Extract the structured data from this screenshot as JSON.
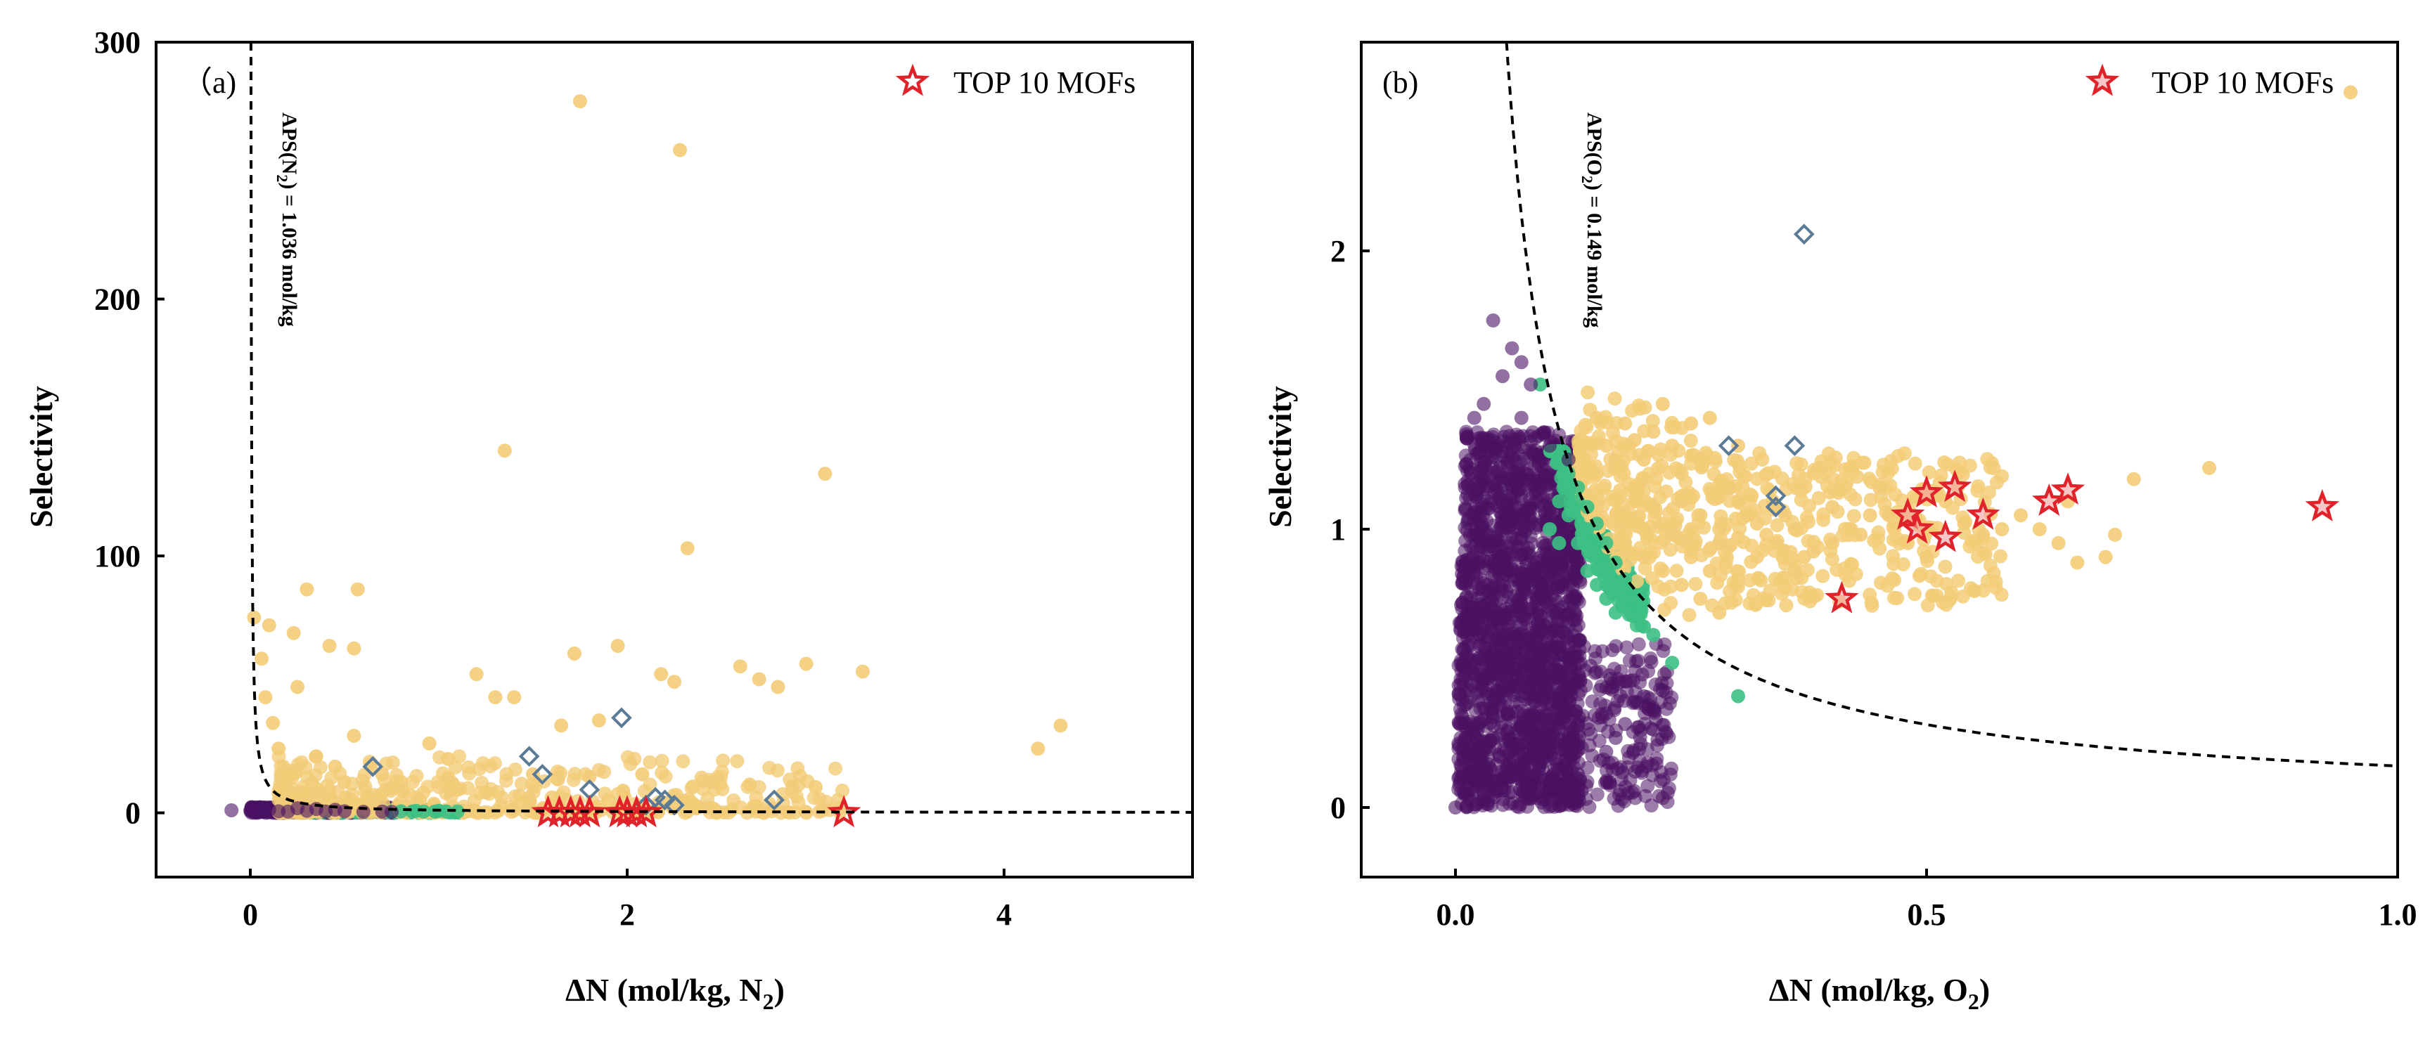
{
  "chart_data": [
    {
      "panel_label": "（a)",
      "type": "scatter",
      "xlabel": "ΔN (mol/kg,  N",
      "xlabel_sub": "2",
      "xlabel_end": ")",
      "ylabel": "Selectivity",
      "xlim": [
        -0.5,
        5
      ],
      "ylim": [
        -25,
        300
      ],
      "xticks": [
        0,
        2,
        4
      ],
      "yticks": [
        0,
        100,
        200,
        300
      ],
      "legend": {
        "label": "TOP 10 MOFs",
        "placement": "top-right"
      },
      "annotation": {
        "text_parts": [
          "APS(N",
          "2",
          ") = 1.036 mol/kg"
        ],
        "rotation": "vertical"
      },
      "apsf_constant": 1.036,
      "colors": {
        "yellow": "#f3cc78",
        "green": "#3cc084",
        "purple": "#4a1063",
        "blue": "#5a7a96",
        "red": "#e0232a"
      },
      "series": [
        {
          "name": "yellow",
          "marker": "circle",
          "points": [
            [
              1.75,
              277
            ],
            [
              2.28,
              258
            ],
            [
              1.35,
              141
            ],
            [
              3.05,
              132
            ],
            [
              2.32,
              103
            ],
            [
              0.3,
              87
            ],
            [
              0.57,
              87
            ],
            [
              0.02,
              76
            ],
            [
              0.1,
              73
            ],
            [
              0.23,
              70
            ],
            [
              0.42,
              65
            ],
            [
              0.55,
              64
            ],
            [
              0.25,
              49
            ],
            [
              1.2,
              54
            ],
            [
              1.95,
              65
            ],
            [
              2.18,
              54
            ],
            [
              2.25,
              51
            ],
            [
              2.6,
              57
            ],
            [
              2.7,
              52
            ],
            [
              2.8,
              49
            ],
            [
              2.95,
              58
            ],
            [
              3.25,
              55
            ],
            [
              4.3,
              34
            ],
            [
              4.18,
              25
            ],
            [
              1.3,
              45
            ],
            [
              1.4,
              45
            ],
            [
              1.65,
              34
            ],
            [
              1.85,
              36
            ],
            [
              1.72,
              62
            ],
            [
              0.55,
              30
            ],
            [
              0.95,
              27
            ],
            [
              1.05,
              21
            ],
            [
              1.5,
              15
            ],
            [
              1.8,
              14
            ],
            [
              2.08,
              15
            ],
            [
              2.45,
              12
            ],
            [
              2.65,
              11
            ],
            [
              3.0,
              10
            ],
            [
              0.15,
              25
            ],
            [
              0.12,
              35
            ],
            [
              0.08,
              45
            ],
            [
              0.06,
              60
            ],
            [
              0.35,
              22
            ],
            [
              0.45,
              18
            ],
            [
              0.7,
              15
            ],
            [
              0.8,
              12
            ],
            [
              1.1,
              9
            ],
            [
              1.25,
              8
            ],
            [
              1.6,
              6
            ],
            [
              1.9,
              5
            ],
            [
              2.2,
              4
            ],
            [
              2.35,
              3
            ],
            [
              0.2,
              15
            ],
            [
              0.28,
              8
            ],
            [
              0.5,
              12
            ],
            [
              0.62,
              6
            ],
            [
              0.9,
              5
            ],
            [
              1.45,
              4
            ]
          ]
        },
        {
          "name": "green",
          "marker": "circle",
          "points": [
            [
              0.8,
              0.6
            ],
            [
              0.86,
              0.5
            ],
            [
              0.92,
              0.5
            ],
            [
              0.98,
              0.5
            ],
            [
              1.04,
              0.5
            ],
            [
              1.1,
              0.5
            ],
            [
              0.88,
              0.8
            ],
            [
              1.0,
              0.8
            ]
          ]
        },
        {
          "name": "purple",
          "marker": "circle",
          "points": [
            [
              -0.1,
              1
            ],
            [
              0.0,
              0.8
            ],
            [
              0.05,
              1
            ],
            [
              0.1,
              1.2
            ],
            [
              0.15,
              0.6
            ],
            [
              0.2,
              0.5
            ],
            [
              0.3,
              0.8
            ],
            [
              0.4,
              0.5
            ],
            [
              0.5,
              0.6
            ],
            [
              0.6,
              0.4
            ],
            [
              0.7,
              0.5
            ],
            [
              0.75,
              0.4
            ],
            [
              0.35,
              1.5
            ],
            [
              0.25,
              1.8
            ],
            [
              0.45,
              1.2
            ]
          ]
        },
        {
          "name": "blue",
          "marker": "diamond",
          "points": [
            [
              0.65,
              18
            ],
            [
              1.48,
              22
            ],
            [
              1.55,
              15
            ],
            [
              1.97,
              37
            ],
            [
              1.8,
              9
            ],
            [
              2.15,
              6
            ],
            [
              2.2,
              5
            ],
            [
              2.25,
              3
            ],
            [
              2.78,
              5
            ],
            [
              2.1,
              3
            ]
          ]
        },
        {
          "name": "TOP 10 MOFs",
          "marker": "star",
          "points": [
            [
              1.58,
              0
            ],
            [
              1.7,
              0
            ],
            [
              1.75,
              0
            ],
            [
              1.8,
              0
            ],
            [
              1.96,
              0
            ],
            [
              2.0,
              0
            ],
            [
              2.05,
              0
            ],
            [
              2.1,
              0
            ],
            [
              3.15,
              0
            ],
            [
              1.64,
              0
            ]
          ]
        }
      ]
    },
    {
      "panel_label": "(b)",
      "type": "scatter",
      "xlabel": "ΔN (mol/kg,  O",
      "xlabel_sub": "2",
      "xlabel_end": ")",
      "ylabel": "Selectivity",
      "xlim": [
        -0.1,
        1.0
      ],
      "ylim": [
        -0.25,
        2.75
      ],
      "xticks": [
        0.0,
        0.5,
        1.0
      ],
      "yticks": [
        0,
        1,
        2
      ],
      "legend": {
        "label": "TOP 10 MOFs",
        "placement": "top-right"
      },
      "annotation": {
        "text_parts": [
          "APS(O",
          "2",
          ") = 0.149 mol/kg"
        ],
        "rotation": "vertical"
      },
      "apsf_constant": 0.149,
      "colors": {
        "yellow": "#f3cc78",
        "green": "#3cc084",
        "purple": "#4a1063",
        "blue": "#5a7a96",
        "red": "#e0232a"
      },
      "series": [
        {
          "name": "yellow",
          "marker": "circle",
          "points": [
            [
              0.95,
              2.57
            ],
            [
              0.65,
              1.1
            ],
            [
              0.8,
              1.22
            ],
            [
              0.72,
              1.18
            ],
            [
              0.7,
              0.98
            ],
            [
              0.69,
              0.9
            ],
            [
              0.6,
              1.05
            ],
            [
              0.58,
              1.0
            ],
            [
              0.64,
              0.95
            ],
            [
              0.66,
              0.88
            ],
            [
              0.55,
              0.78
            ],
            [
              0.5,
              0.9
            ],
            [
              0.45,
              1.15
            ],
            [
              0.44,
              1.05
            ],
            [
              0.42,
              1.0
            ],
            [
              0.4,
              0.95
            ],
            [
              0.38,
              0.92
            ],
            [
              0.36,
              1.0
            ],
            [
              0.35,
              1.05
            ],
            [
              0.33,
              0.98
            ],
            [
              0.32,
              0.9
            ],
            [
              0.3,
              1.1
            ],
            [
              0.28,
              0.95
            ],
            [
              0.27,
              0.85
            ],
            [
              0.25,
              1.0
            ],
            [
              0.24,
              1.2
            ],
            [
              0.23,
              1.3
            ],
            [
              0.22,
              1.45
            ],
            [
              0.21,
              1.35
            ],
            [
              0.2,
              1.25
            ],
            [
              0.19,
              1.15
            ],
            [
              0.18,
              1.05
            ],
            [
              0.17,
              0.95
            ],
            [
              0.2,
              0.9
            ],
            [
              0.22,
              0.85
            ],
            [
              0.24,
              0.8
            ],
            [
              0.26,
              0.75
            ],
            [
              0.28,
              0.7
            ],
            [
              0.3,
              1.3
            ],
            [
              0.27,
              1.4
            ],
            [
              0.25,
              1.38
            ],
            [
              0.26,
              1.25
            ],
            [
              0.29,
              1.15
            ],
            [
              0.31,
              1.05
            ],
            [
              0.34,
              0.95
            ],
            [
              0.37,
              0.9
            ],
            [
              0.4,
              1.08
            ],
            [
              0.43,
              0.98
            ],
            [
              0.46,
              1.05
            ],
            [
              0.48,
              0.95
            ],
            [
              0.52,
              1.1
            ],
            [
              0.54,
              1.02
            ],
            [
              0.56,
              0.98
            ],
            [
              0.62,
              1.0
            ],
            [
              0.15,
              1.4
            ],
            [
              0.16,
              1.3
            ],
            [
              0.15,
              1.2
            ],
            [
              0.17,
              1.25
            ],
            [
              0.18,
              1.38
            ],
            [
              0.19,
              1.32
            ],
            [
              0.2,
              1.18
            ],
            [
              0.21,
              1.08
            ],
            [
              0.23,
              0.98
            ],
            [
              0.25,
              0.9
            ],
            [
              0.22,
              1.02
            ],
            [
              0.24,
              1.1
            ],
            [
              0.26,
              1.05
            ],
            [
              0.28,
              1.0
            ],
            [
              0.3,
              0.97
            ],
            [
              0.32,
              1.02
            ],
            [
              0.34,
              1.08
            ],
            [
              0.36,
              0.85
            ],
            [
              0.2,
              1.0
            ],
            [
              0.18,
              0.95
            ]
          ]
        },
        {
          "name": "green",
          "marker": "circle",
          "points": [
            [
              0.09,
              1.52
            ],
            [
              0.3,
              0.4
            ],
            [
              0.23,
              0.52
            ],
            [
              0.12,
              1.2
            ],
            [
              0.13,
              1.1
            ],
            [
              0.14,
              1.0
            ],
            [
              0.15,
              0.9
            ],
            [
              0.16,
              0.85
            ],
            [
              0.17,
              0.8
            ],
            [
              0.18,
              0.75
            ],
            [
              0.19,
              0.7
            ],
            [
              0.2,
              0.65
            ],
            [
              0.21,
              0.62
            ],
            [
              0.11,
              1.25
            ],
            [
              0.12,
              1.05
            ],
            [
              0.13,
              0.95
            ],
            [
              0.14,
              0.85
            ],
            [
              0.15,
              0.8
            ],
            [
              0.16,
              0.75
            ],
            [
              0.17,
              0.7
            ],
            [
              0.13,
              1.15
            ],
            [
              0.14,
              1.08
            ],
            [
              0.15,
              1.02
            ],
            [
              0.16,
              0.95
            ],
            [
              0.17,
              0.88
            ],
            [
              0.18,
              0.82
            ],
            [
              0.12,
              1.15
            ],
            [
              0.11,
              1.1
            ],
            [
              0.1,
              1.0
            ],
            [
              0.11,
              0.95
            ]
          ]
        },
        {
          "name": "purple",
          "marker": "circle",
          "points": [
            [
              0.04,
              1.75
            ],
            [
              0.06,
              1.65
            ],
            [
              0.07,
              1.6
            ],
            [
              0.08,
              1.52
            ],
            [
              0.05,
              1.55
            ],
            [
              0.03,
              1.45
            ],
            [
              0.02,
              1.4
            ],
            [
              0.07,
              1.4
            ],
            [
              0.1,
              1.3
            ],
            [
              0.12,
              1.25
            ],
            [
              0.0,
              0.0
            ],
            [
              0.01,
              0.05
            ],
            [
              0.02,
              0.1
            ],
            [
              0.03,
              0.15
            ],
            [
              0.05,
              0.1
            ],
            [
              0.08,
              0.08
            ],
            [
              0.1,
              0.05
            ],
            [
              0.13,
              0.12
            ],
            [
              0.16,
              0.2
            ],
            [
              0.18,
              0.3
            ],
            [
              0.2,
              0.4
            ],
            [
              0.21,
              0.28
            ],
            [
              0.19,
              0.38
            ],
            [
              0.22,
              0.42
            ],
            [
              0.21,
              0.35
            ],
            [
              0.17,
              0.25
            ]
          ]
        },
        {
          "name": "blue",
          "marker": "diamond",
          "points": [
            [
              0.37,
              2.06
            ],
            [
              0.29,
              1.3
            ],
            [
              0.36,
              1.3
            ],
            [
              0.34,
              1.12
            ],
            [
              0.34,
              1.08
            ]
          ]
        },
        {
          "name": "TOP 10 MOFs",
          "marker": "star",
          "points": [
            [
              0.92,
              1.08
            ],
            [
              0.41,
              0.75
            ],
            [
              0.48,
              1.05
            ],
            [
              0.49,
              1.0
            ],
            [
              0.5,
              1.13
            ],
            [
              0.52,
              0.97
            ],
            [
              0.53,
              1.15
            ],
            [
              0.56,
              1.05
            ],
            [
              0.63,
              1.1
            ],
            [
              0.65,
              1.14
            ]
          ]
        }
      ]
    }
  ]
}
